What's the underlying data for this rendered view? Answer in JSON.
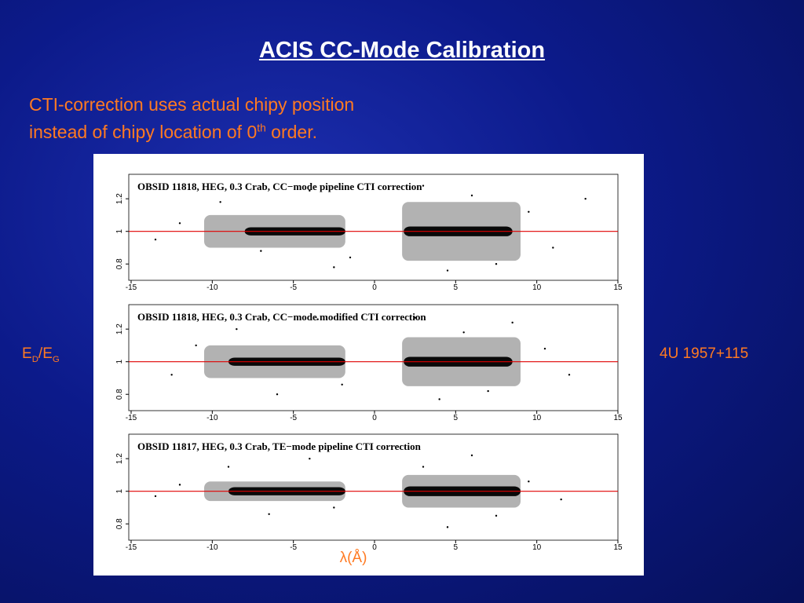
{
  "slide": {
    "title": "ACIS CC-Mode Calibration",
    "note_line1": "CTI-correction uses actual chipy position",
    "note_line2": [
      "instead of chipy location of 0",
      "th",
      " order."
    ],
    "y_label": [
      "E",
      "D",
      "/E",
      "G"
    ],
    "x_label": "λ(Å)",
    "source": "4U 1957+115"
  },
  "chart_data": [
    {
      "type": "scatter",
      "title": "OBSID 11818, HEG, 0.3 Crab, CC−mode pipeline CTI correction",
      "xlim": [
        -15,
        15
      ],
      "ylim": [
        0.7,
        1.35
      ],
      "xticks": [
        -15,
        -10,
        -5,
        0,
        5,
        10,
        15
      ],
      "yticks": [
        0.8,
        1,
        1.2
      ],
      "reference_line": {
        "y": 1,
        "color": "#e00000"
      },
      "color": "#000000",
      "clusters": [
        {
          "x": [
            -10.5,
            -1.8
          ],
          "y": [
            0.9,
            1.1
          ]
        },
        {
          "x": [
            -8,
            -1.8
          ],
          "y": [
            0.975,
            1.025
          ]
        },
        {
          "x": [
            1.7,
            9
          ],
          "y": [
            0.82,
            1.18
          ]
        },
        {
          "x": [
            1.8,
            8.5
          ],
          "y": [
            0.97,
            1.03
          ]
        }
      ],
      "x": [
        -12,
        -9.5,
        -7,
        -4,
        -2.5,
        -1.5,
        3,
        4.5,
        6,
        7.5,
        9.5,
        11,
        13,
        -13.5
      ],
      "y": [
        1.05,
        1.18,
        0.88,
        1.25,
        0.78,
        0.84,
        1.28,
        0.76,
        1.22,
        0.8,
        1.12,
        0.9,
        1.2,
        0.95
      ]
    },
    {
      "type": "scatter",
      "title": "OBSID 11818, HEG, 0.3 Crab, CC−mode modified CTI correction",
      "xlim": [
        -15,
        15
      ],
      "ylim": [
        0.7,
        1.35
      ],
      "xticks": [
        -15,
        -10,
        -5,
        0,
        5,
        10,
        15
      ],
      "yticks": [
        0.8,
        1,
        1.2
      ],
      "reference_line": {
        "y": 1,
        "color": "#e00000"
      },
      "color": "#000000",
      "clusters": [
        {
          "x": [
            -10.5,
            -1.8
          ],
          "y": [
            0.9,
            1.1
          ]
        },
        {
          "x": [
            -9,
            -1.8
          ],
          "y": [
            0.975,
            1.025
          ]
        },
        {
          "x": [
            1.7,
            9
          ],
          "y": [
            0.85,
            1.15
          ]
        },
        {
          "x": [
            1.8,
            8.5
          ],
          "y": [
            0.97,
            1.03
          ]
        }
      ],
      "x": [
        -12.5,
        -8.5,
        -6,
        -3.5,
        -2,
        2.5,
        4,
        5.5,
        7,
        8.5,
        10.5,
        12,
        -11
      ],
      "y": [
        0.92,
        1.2,
        0.8,
        1.26,
        0.86,
        1.27,
        0.77,
        1.18,
        0.82,
        1.24,
        1.08,
        0.92,
        1.1
      ]
    },
    {
      "type": "scatter",
      "title": "OBSID 11817, HEG, 0.3 Crab, TE−mode pipeline CTI  correction",
      "xlim": [
        -15,
        15
      ],
      "ylim": [
        0.7,
        1.35
      ],
      "xticks": [
        -15,
        -10,
        -5,
        0,
        5,
        10,
        15
      ],
      "yticks": [
        0.8,
        1,
        1.2
      ],
      "reference_line": {
        "y": 1,
        "color": "#e00000"
      },
      "color": "#000000",
      "clusters": [
        {
          "x": [
            -10.5,
            -1.8
          ],
          "y": [
            0.94,
            1.06
          ]
        },
        {
          "x": [
            -9,
            -1.8
          ],
          "y": [
            0.975,
            1.025
          ]
        },
        {
          "x": [
            1.7,
            9
          ],
          "y": [
            0.9,
            1.1
          ]
        },
        {
          "x": [
            1.8,
            9
          ],
          "y": [
            0.97,
            1.03
          ]
        }
      ],
      "x": [
        -12,
        -9,
        -6.5,
        -4,
        -2.5,
        3,
        4.5,
        6,
        7.5,
        9.5,
        11.5,
        -13.5
      ],
      "y": [
        1.04,
        1.15,
        0.86,
        1.2,
        0.9,
        1.15,
        0.78,
        1.22,
        0.85,
        1.06,
        0.95,
        0.97
      ]
    }
  ]
}
